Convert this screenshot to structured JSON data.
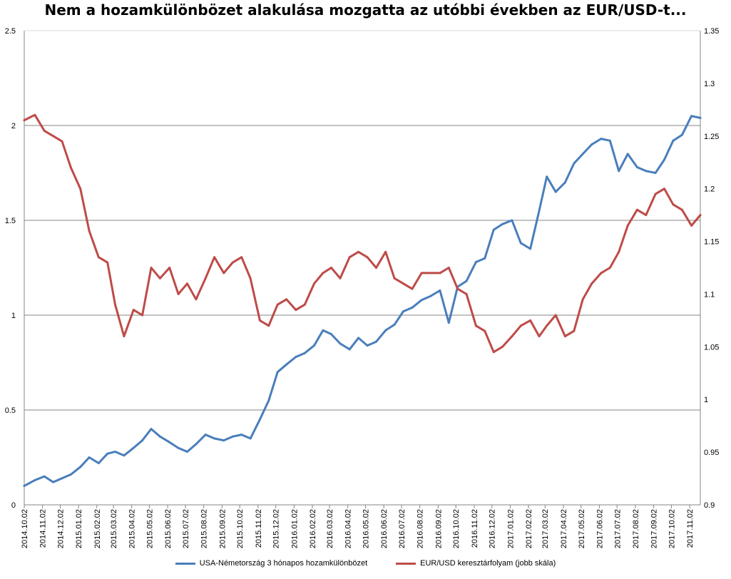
{
  "chart_data": {
    "type": "line",
    "title": "Nem a hozamkülönbözet alakulása mozgatta az utóbbi években az EUR/USD-t...",
    "y_left": {
      "min": 0,
      "max": 2.5,
      "ticks": [
        "0",
        "0.5",
        "1",
        "1.5",
        "2",
        "2.5"
      ]
    },
    "y_right": {
      "min": 0.9,
      "max": 1.35,
      "ticks": [
        "0.9",
        "0.95",
        "1",
        "1.05",
        "1.1",
        "1.15",
        "1.2",
        "1.25",
        "1.3",
        "1.35"
      ]
    },
    "x_start": "2014.10.02",
    "x_end": "2017.11.20",
    "x_tick_labels": [
      "2014.10.02",
      "2014.11.02",
      "2014.12.02",
      "2015.01.02",
      "2015.02.02",
      "2015.03.02",
      "2015.04.02",
      "2015.05.02",
      "2015.06.02",
      "2015.07.02",
      "2015.08.02",
      "2015.09.02",
      "2015.10.02",
      "2015.11.02",
      "2015.12.02",
      "2016.01.02",
      "2016.02.02",
      "2016.03.02",
      "2016.04.02",
      "2016.05.02",
      "2016.06.02",
      "2016.07.02",
      "2016.08.02",
      "2016.09.02",
      "2016.10.02",
      "2016.11.02",
      "2016.12.02",
      "2017.01.02",
      "2017.02.02",
      "2017.03.02",
      "2017.04.02",
      "2017.05.02",
      "2017.06.02",
      "2017.07.02",
      "2017.08.02",
      "2017.09.02",
      "2017.10.02",
      "2017.11.02"
    ],
    "grid": "horizontal",
    "legend_position": "bottom",
    "series": [
      {
        "name": "USA-Németország 3 hónapos hozamkülönbözet",
        "axis": "left",
        "color": "#4a7ebb",
        "x": [
          "2014.10.02",
          "2014.10.20",
          "2014.11.05",
          "2014.11.20",
          "2014.12.05",
          "2014.12.20",
          "2015.01.05",
          "2015.01.20",
          "2015.02.05",
          "2015.02.20",
          "2015.03.05",
          "2015.03.20",
          "2015.04.05",
          "2015.04.20",
          "2015.05.05",
          "2015.05.20",
          "2015.06.05",
          "2015.06.20",
          "2015.07.05",
          "2015.07.20",
          "2015.08.05",
          "2015.08.20",
          "2015.09.05",
          "2015.09.20",
          "2015.10.05",
          "2015.10.20",
          "2015.11.05",
          "2015.11.20",
          "2015.12.05",
          "2015.12.20",
          "2016.01.05",
          "2016.01.20",
          "2016.02.05",
          "2016.02.20",
          "2016.03.05",
          "2016.03.20",
          "2016.04.05",
          "2016.04.20",
          "2016.05.05",
          "2016.05.20",
          "2016.06.05",
          "2016.06.20",
          "2016.07.05",
          "2016.07.20",
          "2016.08.05",
          "2016.08.20",
          "2016.09.05",
          "2016.09.20",
          "2016.10.05",
          "2016.10.20",
          "2016.11.05",
          "2016.11.20",
          "2016.12.05",
          "2016.12.20",
          "2017.01.05",
          "2017.01.20",
          "2017.02.05",
          "2017.02.20",
          "2017.03.05",
          "2017.03.20",
          "2017.04.05",
          "2017.04.20",
          "2017.05.05",
          "2017.05.20",
          "2017.06.05",
          "2017.06.20",
          "2017.07.05",
          "2017.07.20",
          "2017.08.05",
          "2017.08.20",
          "2017.09.05",
          "2017.09.20",
          "2017.10.05",
          "2017.10.20",
          "2017.11.05",
          "2017.11.20"
        ],
        "values": [
          0.1,
          0.13,
          0.15,
          0.12,
          0.14,
          0.16,
          0.2,
          0.25,
          0.22,
          0.27,
          0.28,
          0.26,
          0.3,
          0.34,
          0.4,
          0.36,
          0.33,
          0.3,
          0.28,
          0.32,
          0.37,
          0.35,
          0.34,
          0.36,
          0.37,
          0.35,
          0.45,
          0.55,
          0.7,
          0.74,
          0.78,
          0.8,
          0.84,
          0.92,
          0.9,
          0.85,
          0.82,
          0.88,
          0.84,
          0.86,
          0.92,
          0.95,
          1.02,
          1.04,
          1.08,
          1.1,
          1.13,
          0.96,
          1.15,
          1.18,
          1.28,
          1.3,
          1.45,
          1.48,
          1.5,
          1.38,
          1.35,
          1.55,
          1.73,
          1.65,
          1.7,
          1.8,
          1.85,
          1.9,
          1.93,
          1.92,
          1.76,
          1.85,
          1.78,
          1.76,
          1.75,
          1.82,
          1.92,
          1.95,
          2.05,
          2.04
        ]
      },
      {
        "name": "EUR/USD keresztárfolyam (jobb skála)",
        "axis": "right",
        "color": "#be4b48",
        "x": [
          "2014.10.02",
          "2014.10.20",
          "2014.11.05",
          "2014.11.20",
          "2014.12.05",
          "2014.12.20",
          "2015.01.05",
          "2015.01.20",
          "2015.02.05",
          "2015.02.20",
          "2015.03.05",
          "2015.03.20",
          "2015.04.05",
          "2015.04.20",
          "2015.05.05",
          "2015.05.20",
          "2015.06.05",
          "2015.06.20",
          "2015.07.05",
          "2015.07.20",
          "2015.08.05",
          "2015.08.20",
          "2015.09.05",
          "2015.09.20",
          "2015.10.05",
          "2015.10.20",
          "2015.11.05",
          "2015.11.20",
          "2015.12.05",
          "2015.12.20",
          "2016.01.05",
          "2016.01.20",
          "2016.02.05",
          "2016.02.20",
          "2016.03.05",
          "2016.03.20",
          "2016.04.05",
          "2016.04.20",
          "2016.05.05",
          "2016.05.20",
          "2016.06.05",
          "2016.06.20",
          "2016.07.05",
          "2016.07.20",
          "2016.08.05",
          "2016.08.20",
          "2016.09.05",
          "2016.09.20",
          "2016.10.05",
          "2016.10.20",
          "2016.11.05",
          "2016.11.20",
          "2016.12.05",
          "2016.12.20",
          "2017.01.05",
          "2017.01.20",
          "2017.02.05",
          "2017.02.20",
          "2017.03.05",
          "2017.03.20",
          "2017.04.05",
          "2017.04.20",
          "2017.05.05",
          "2017.05.20",
          "2017.06.05",
          "2017.06.20",
          "2017.07.05",
          "2017.07.20",
          "2017.08.05",
          "2017.08.20",
          "2017.09.05",
          "2017.09.20",
          "2017.10.05",
          "2017.10.20",
          "2017.11.05",
          "2017.11.20"
        ],
        "values": [
          1.265,
          1.27,
          1.255,
          1.25,
          1.245,
          1.22,
          1.2,
          1.16,
          1.135,
          1.13,
          1.09,
          1.06,
          1.085,
          1.08,
          1.125,
          1.115,
          1.125,
          1.1,
          1.11,
          1.095,
          1.115,
          1.135,
          1.12,
          1.13,
          1.135,
          1.115,
          1.075,
          1.07,
          1.09,
          1.095,
          1.085,
          1.09,
          1.11,
          1.12,
          1.125,
          1.115,
          1.135,
          1.14,
          1.135,
          1.125,
          1.14,
          1.115,
          1.11,
          1.105,
          1.12,
          1.12,
          1.12,
          1.125,
          1.105,
          1.1,
          1.07,
          1.065,
          1.045,
          1.05,
          1.06,
          1.07,
          1.075,
          1.06,
          1.07,
          1.08,
          1.06,
          1.065,
          1.095,
          1.11,
          1.12,
          1.125,
          1.14,
          1.165,
          1.18,
          1.175,
          1.195,
          1.2,
          1.185,
          1.18,
          1.165,
          1.175
        ]
      }
    ]
  }
}
